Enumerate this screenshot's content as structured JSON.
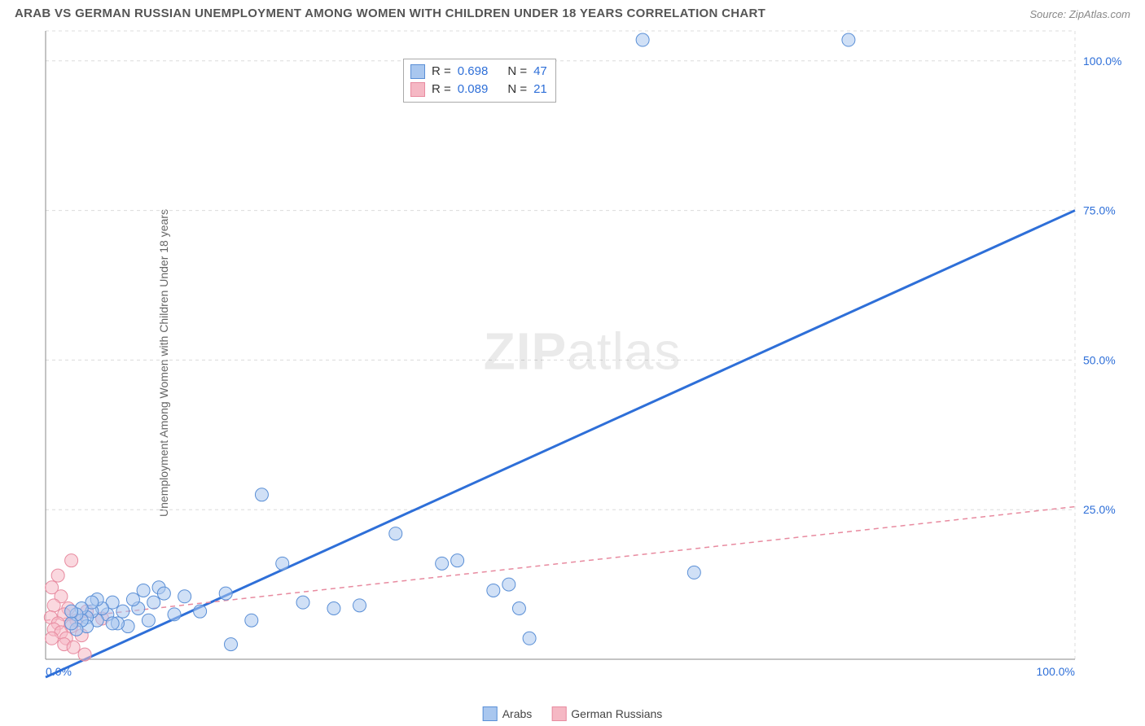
{
  "title": "ARAB VS GERMAN RUSSIAN UNEMPLOYMENT AMONG WOMEN WITH CHILDREN UNDER 18 YEARS CORRELATION CHART",
  "source": "Source: ZipAtlas.com",
  "ylabel": "Unemployment Among Women with Children Under 18 years",
  "watermark_strong": "ZIP",
  "watermark_light": "atlas",
  "chart": {
    "type": "scatter",
    "xlim": [
      0,
      100
    ],
    "ylim": [
      0,
      105
    ],
    "xtick_labels": [
      "0.0%",
      "100.0%"
    ],
    "xtick_positions": [
      0,
      100
    ],
    "ytick_labels": [
      "25.0%",
      "50.0%",
      "75.0%",
      "100.0%"
    ],
    "ytick_positions": [
      25,
      50,
      75,
      100
    ],
    "grid_color": "#dcdcdc",
    "grid_dash": "4 4",
    "axis_color": "#888888",
    "background_color": "#ffffff",
    "marker_radius": 8,
    "marker_opacity": 0.55,
    "series": [
      {
        "name": "Arabs",
        "fill_color": "#a9c7ef",
        "stroke_color": "#5a8fd6",
        "line_color": "#2e6fd8",
        "line_width": 3,
        "line_dash": "none",
        "r_value": "0.698",
        "n_value": "47",
        "trend_start": [
          0,
          -3
        ],
        "trend_end": [
          100,
          75
        ],
        "points": [
          [
            58,
            103.5
          ],
          [
            78,
            103.5
          ],
          [
            21,
            27.5
          ],
          [
            34,
            21
          ],
          [
            38.5,
            16
          ],
          [
            40,
            16.5
          ],
          [
            45,
            12.5
          ],
          [
            47,
            3.5
          ],
          [
            46,
            8.5
          ],
          [
            43.5,
            11.5
          ],
          [
            28,
            8.5
          ],
          [
            30.5,
            9
          ],
          [
            23,
            16
          ],
          [
            25,
            9.5
          ],
          [
            20,
            6.5
          ],
          [
            18,
            2.5
          ],
          [
            15,
            8
          ],
          [
            13.5,
            10.5
          ],
          [
            12.5,
            7.5
          ],
          [
            11,
            12
          ],
          [
            10.5,
            9.5
          ],
          [
            10,
            6.5
          ],
          [
            9.5,
            11.5
          ],
          [
            9,
            8.5
          ],
          [
            8,
            5.5
          ],
          [
            8.5,
            10
          ],
          [
            7.5,
            8
          ],
          [
            11.5,
            11
          ],
          [
            7,
            6
          ],
          [
            6.5,
            9.5
          ],
          [
            6,
            7.5
          ],
          [
            6.5,
            6
          ],
          [
            5.5,
            8.5
          ],
          [
            5,
            10
          ],
          [
            5,
            6.5
          ],
          [
            4.5,
            8
          ],
          [
            4.5,
            9.5
          ],
          [
            4,
            7
          ],
          [
            4,
            5.5
          ],
          [
            3.5,
            8.5
          ],
          [
            3.5,
            6.5
          ],
          [
            3,
            7.5
          ],
          [
            3,
            5
          ],
          [
            2.5,
            6
          ],
          [
            2.5,
            8
          ],
          [
            63,
            14.5
          ],
          [
            17.5,
            11
          ]
        ]
      },
      {
        "name": "German Russians",
        "fill_color": "#f5b8c4",
        "stroke_color": "#e88ba0",
        "line_color": "#e88ba0",
        "line_width": 1.5,
        "line_dash": "6 5",
        "r_value": "0.089",
        "n_value": "21",
        "trend_start": [
          0,
          6.5
        ],
        "trend_end": [
          100,
          25.5
        ],
        "points": [
          [
            2.5,
            16.5
          ],
          [
            1.2,
            14
          ],
          [
            0.6,
            12
          ],
          [
            1.5,
            10.5
          ],
          [
            0.8,
            9
          ],
          [
            2.2,
            8.5
          ],
          [
            1.8,
            7.5
          ],
          [
            0.5,
            7
          ],
          [
            3,
            6.5
          ],
          [
            1.2,
            6
          ],
          [
            2.5,
            5.5
          ],
          [
            0.8,
            5
          ],
          [
            1.5,
            4.5
          ],
          [
            3.5,
            4
          ],
          [
            2,
            3.5
          ],
          [
            0.6,
            3.5
          ],
          [
            1.8,
            2.5
          ],
          [
            2.7,
            2
          ],
          [
            4,
            8
          ],
          [
            3.8,
            0.8
          ],
          [
            5.5,
            6.8
          ]
        ]
      }
    ]
  },
  "legend": {
    "series1_label": "Arabs",
    "series2_label": "German Russians"
  },
  "stats_labels": {
    "r": "R =",
    "n": "N ="
  }
}
